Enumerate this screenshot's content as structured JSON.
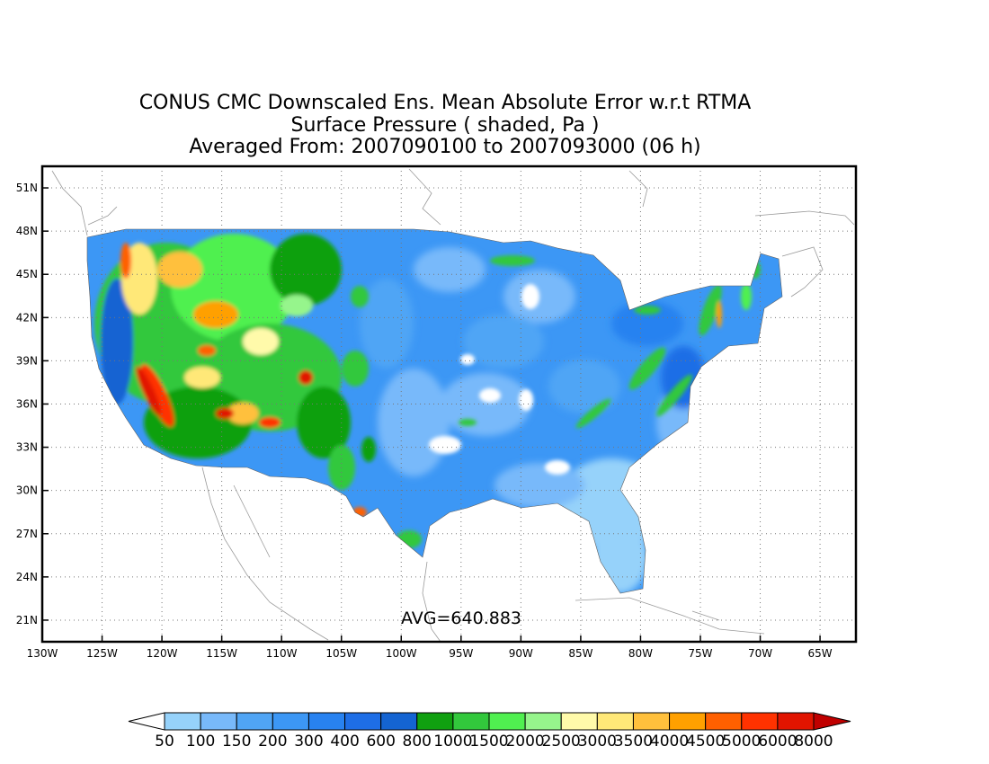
{
  "title": {
    "line1": "CONUS CMC Downscaled Ens. Mean Absolute Error w.r.t RTMA",
    "line2": "Surface Pressure ( shaded, Pa )",
    "line3": "Averaged From: 2007090100 to 2007093000 (06 h)"
  },
  "map": {
    "lat_labels": [
      "51N",
      "48N",
      "45N",
      "42N",
      "39N",
      "36N",
      "33N",
      "30N",
      "27N",
      "24N",
      "21N"
    ],
    "lon_labels": [
      "130W",
      "125W",
      "120W",
      "115W",
      "110W",
      "105W",
      "100W",
      "95W",
      "90W",
      "85W",
      "80W",
      "75W",
      "70W",
      "65W"
    ],
    "avg_label": "AVG=640.883",
    "lon_range": [
      -130,
      -62
    ],
    "lat_range": [
      19.5,
      52.5
    ],
    "grid": true
  },
  "colorbar": {
    "labels": [
      "50",
      "100",
      "150",
      "200",
      "300",
      "400",
      "600",
      "800",
      "1000",
      "1500",
      "2000",
      "2500",
      "3000",
      "3500",
      "4000",
      "4500",
      "5000",
      "6000",
      "8000"
    ],
    "colors": [
      "#ffffff",
      "#96d2fa",
      "#78b9fa",
      "#50a5f5",
      "#3c97f5",
      "#2882f0",
      "#1e6ee6",
      "#1464d2",
      "#10a010",
      "#32c83c",
      "#50f050",
      "#96f58c",
      "#fffaaa",
      "#ffe878",
      "#ffc03c",
      "#ffa000",
      "#ff6000",
      "#ff3200",
      "#e11400",
      "#c00000"
    ]
  }
}
